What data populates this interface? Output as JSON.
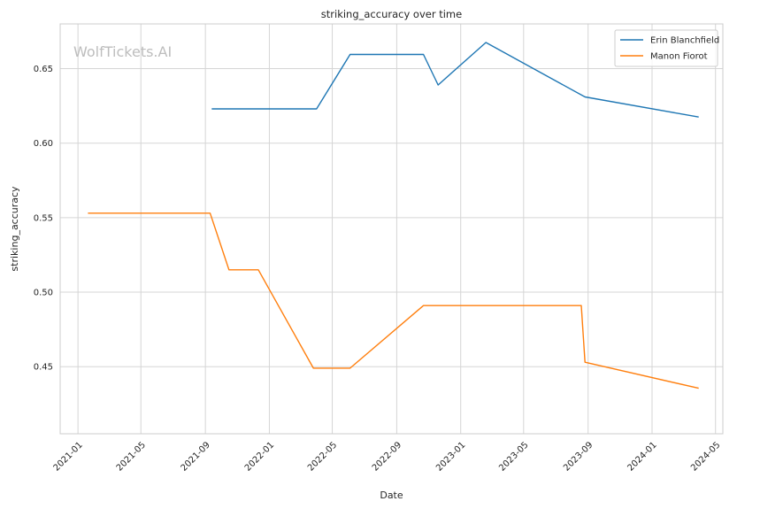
{
  "chart_data": {
    "type": "line",
    "title": "striking_accuracy over time",
    "xlabel": "Date",
    "ylabel": "striking_accuracy",
    "watermark": "WolfTickets.AI",
    "x_ticks": [
      "2021-01",
      "2021-05",
      "2021-09",
      "2022-01",
      "2022-05",
      "2022-09",
      "2023-01",
      "2023-05",
      "2023-09",
      "2024-01",
      "2024-05"
    ],
    "y_ticks": [
      "0.45",
      "0.50",
      "0.55",
      "0.60",
      "0.65"
    ],
    "xlim": [
      "2020-11-28",
      "2024-05-15"
    ],
    "ylim": [
      0.405,
      0.68
    ],
    "grid": true,
    "legend_position": "top-right",
    "series": [
      {
        "name": "Erin Blanchfield",
        "color": "#1f77b4",
        "points": [
          [
            "2021-09-13",
            0.623
          ],
          [
            "2022-04-01",
            0.623
          ],
          [
            "2022-06-04",
            0.6595
          ],
          [
            "2022-10-22",
            0.6595
          ],
          [
            "2022-11-19",
            0.639
          ],
          [
            "2023-02-18",
            0.6675
          ],
          [
            "2023-08-26",
            0.631
          ],
          [
            "2024-03-30",
            0.6175
          ]
        ]
      },
      {
        "name": "Manon Fiorot",
        "color": "#ff7f0e",
        "points": [
          [
            "2021-01-20",
            0.553
          ],
          [
            "2021-09-10",
            0.553
          ],
          [
            "2021-10-16",
            0.515
          ],
          [
            "2021-12-11",
            0.515
          ],
          [
            "2022-03-26",
            0.449
          ],
          [
            "2022-06-04",
            0.449
          ],
          [
            "2022-10-22",
            0.491
          ],
          [
            "2023-08-19",
            0.491
          ],
          [
            "2023-08-26",
            0.453
          ],
          [
            "2024-03-30",
            0.4355
          ]
        ]
      }
    ]
  }
}
